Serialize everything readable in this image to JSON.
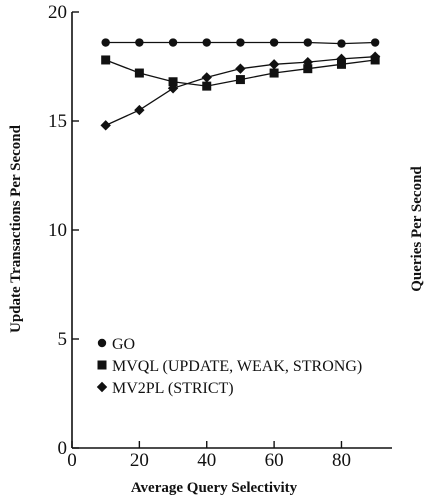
{
  "chart_data": {
    "type": "line",
    "xlabel": "Average Query Selectivity",
    "ylabel": "Update Transactions Per Second",
    "y2label": "Queries Per Second",
    "xlim": [
      0,
      95
    ],
    "ylim": [
      0,
      20
    ],
    "xticks": [
      0,
      20,
      40,
      60,
      80
    ],
    "yticks": [
      0,
      5,
      10,
      15,
      20
    ],
    "grid": false,
    "legend_position": "bottom-left",
    "x": [
      10,
      20,
      30,
      40,
      50,
      60,
      70,
      80,
      90
    ],
    "series": [
      {
        "name": "GO",
        "marker": "circle",
        "values": [
          18.6,
          18.6,
          18.6,
          18.6,
          18.6,
          18.6,
          18.6,
          18.55,
          18.6
        ]
      },
      {
        "name": "MVQL (UPDATE, WEAK, STRONG)",
        "marker": "square",
        "values": [
          17.8,
          17.2,
          16.8,
          16.6,
          16.9,
          17.2,
          17.4,
          17.6,
          17.8
        ]
      },
      {
        "name": "MV2PL (STRICT)",
        "marker": "diamond",
        "values": [
          14.8,
          15.5,
          16.5,
          17.0,
          17.4,
          17.6,
          17.7,
          17.85,
          17.95
        ]
      }
    ]
  }
}
